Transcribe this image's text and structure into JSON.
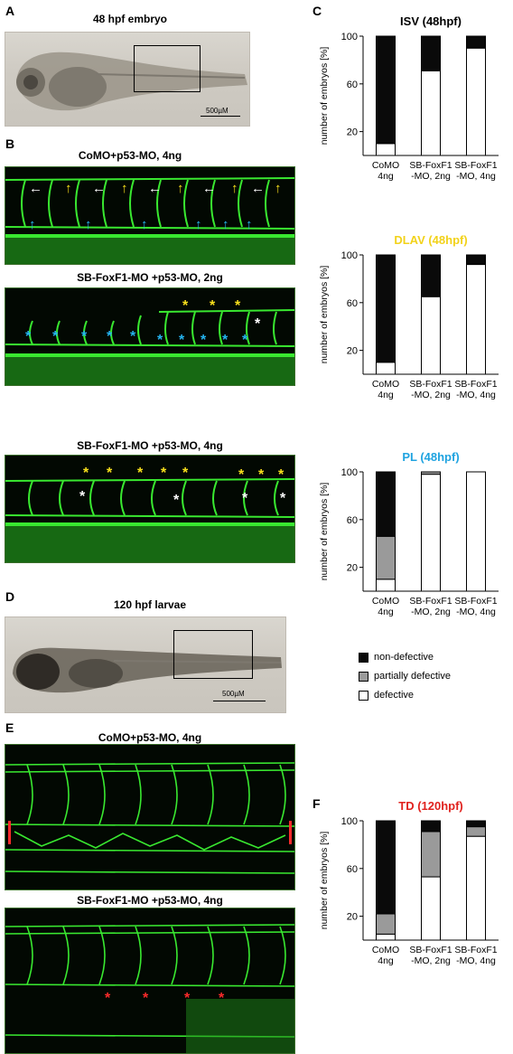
{
  "panels": {
    "A": {
      "letter": "A",
      "title": "48 hpf embryo",
      "scale": "500µM"
    },
    "B": {
      "letter": "B",
      "sub": [
        {
          "title": "CoMO+p53-MO, 4ng"
        },
        {
          "title": "SB-FoxF1-MO +p53-MO, 2ng"
        },
        {
          "title": "SB-FoxF1-MO +p53-MO, 4ng"
        }
      ]
    },
    "D": {
      "letter": "D",
      "title": "120 hpf larvae",
      "scale": "500µM"
    },
    "E": {
      "letter": "E",
      "sub": [
        {
          "title": "CoMO+p53-MO, 4ng"
        },
        {
          "title": "SB-FoxF1-MO +p53-MO, 4ng"
        }
      ]
    },
    "C": {
      "letter": "C"
    },
    "F": {
      "letter": "F"
    }
  },
  "colors": {
    "non_defective": "#0a0a0a",
    "partially_defective": "#9a9a9a",
    "defective": "#ffffff",
    "yellow_title": "#f2d21a",
    "blue_title": "#1fa3e0",
    "red_title": "#e0211d",
    "vessel_green": "#39e830",
    "star_yellow": "#f7e01c",
    "star_blue": "#25b4f0",
    "star_white": "#ffffff",
    "star_red": "#ff2b2b"
  },
  "legend": {
    "items": [
      {
        "label": "non-defective",
        "color": "#0a0a0a"
      },
      {
        "label": "partially defective",
        "color": "#9a9a9a"
      },
      {
        "label": "defective",
        "color": "#ffffff"
      }
    ]
  },
  "chart_data": [
    {
      "type": "bar",
      "stacked": true,
      "title": "ISV (48hpf)",
      "title_color": "#000000",
      "ylabel": "number of embryos [%]",
      "ylim": [
        0,
        100
      ],
      "yticks": [
        20,
        60,
        100
      ],
      "categories": [
        "CoMO\n4ng",
        "SB-FoxF1\n-MO, 2ng",
        "SB-FoxF1\n-MO, 4ng"
      ],
      "series": [
        {
          "name": "defective",
          "values": [
            10,
            71,
            90
          ]
        },
        {
          "name": "partially defective",
          "values": [
            0,
            0,
            0
          ]
        },
        {
          "name": "non-defective",
          "values": [
            90,
            29,
            10
          ]
        }
      ]
    },
    {
      "type": "bar",
      "stacked": true,
      "title": "DLAV (48hpf)",
      "title_color": "#f2d21a",
      "ylabel": "number of embryos [%]",
      "ylim": [
        0,
        100
      ],
      "yticks": [
        20,
        60,
        100
      ],
      "categories": [
        "CoMO\n4ng",
        "SB-FoxF1\n-MO, 2ng",
        "SB-FoxF1\n-MO, 4ng"
      ],
      "series": [
        {
          "name": "defective",
          "values": [
            10,
            65,
            92
          ]
        },
        {
          "name": "partially defective",
          "values": [
            0,
            0,
            0
          ]
        },
        {
          "name": "non-defective",
          "values": [
            90,
            35,
            8
          ]
        }
      ]
    },
    {
      "type": "bar",
      "stacked": true,
      "title": "PL (48hpf)",
      "title_color": "#1fa3e0",
      "ylabel": "number of embryos [%]",
      "ylim": [
        0,
        100
      ],
      "yticks": [
        20,
        60,
        100
      ],
      "categories": [
        "CoMO\n4ng",
        "SB-FoxF1\n-MO, 2ng",
        "SB-FoxF1\n-MO, 4ng"
      ],
      "series": [
        {
          "name": "defective",
          "values": [
            10,
            98,
            100
          ]
        },
        {
          "name": "partially defective",
          "values": [
            36,
            2,
            0
          ]
        },
        {
          "name": "non-defective",
          "values": [
            54,
            0,
            0
          ]
        }
      ]
    },
    {
      "type": "bar",
      "stacked": true,
      "title": "TD (120hpf)",
      "title_color": "#e0211d",
      "ylabel": "number of embryos [%]",
      "ylim": [
        0,
        100
      ],
      "yticks": [
        20,
        60,
        100
      ],
      "categories": [
        "CoMO\n4ng",
        "SB-FoxF1\n-MO, 2ng",
        "SB-FoxF1\n-MO, 4ng"
      ],
      "series": [
        {
          "name": "defective",
          "values": [
            5,
            53,
            87
          ]
        },
        {
          "name": "partially defective",
          "values": [
            17,
            38,
            8
          ]
        },
        {
          "name": "non-defective",
          "values": [
            78,
            9,
            5
          ]
        }
      ]
    }
  ]
}
